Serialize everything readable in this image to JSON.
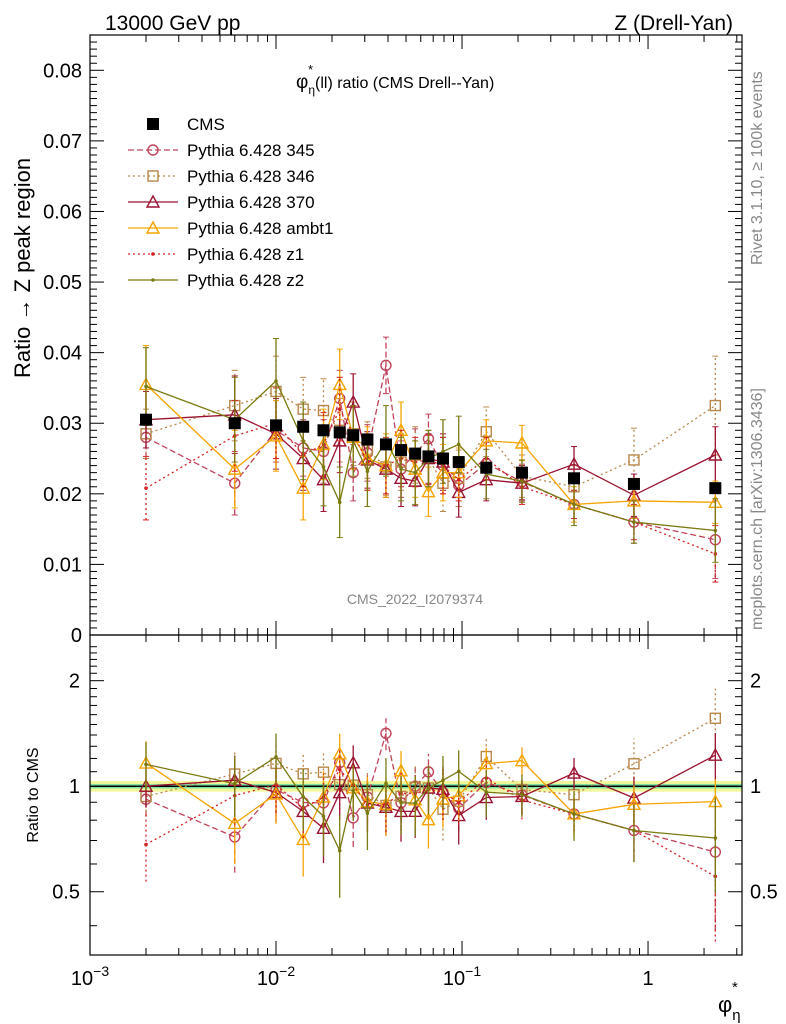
{
  "header": {
    "left": "13000 GeV pp",
    "right": "Z (Drell-Yan)"
  },
  "top_panel": {
    "title_phi": "φ",
    "title_star": "*",
    "title_sub": "η",
    "title_rest": "(ll) ratio (CMS Drell--Yan)",
    "ylabel": "Ratio → Z peak region",
    "yticks": [
      "0",
      "0.01",
      "0.02",
      "0.03",
      "0.04",
      "0.05",
      "0.06",
      "0.07",
      "0.08"
    ],
    "watermark": "CMS_2022_I2079374"
  },
  "bottom_panel": {
    "ylabel": "Ratio to CMS",
    "yticks_left": [
      "0.5",
      "1",
      "2"
    ],
    "yticks_right": [
      "0.5",
      "1",
      "2"
    ]
  },
  "xaxis": {
    "label_phi": "φ",
    "label_star": "*",
    "label_sub": "η",
    "ticks": [
      {
        "base": "10",
        "exp": "−3"
      },
      {
        "base": "10",
        "exp": "−2"
      },
      {
        "base": "10",
        "exp": "−1"
      },
      {
        "base": "1",
        "exp": ""
      }
    ]
  },
  "side_labels": {
    "rivet": "Rivet 3.1.10, ≥ 100k events",
    "mcplots": "mcplots.cern.ch [arXiv:1306.3436]"
  },
  "legend": [
    {
      "label": "CMS",
      "color": "#000000",
      "marker": "square-filled",
      "dash": "solid"
    },
    {
      "label": "Pythia 6.428 345",
      "color": "#c0435a",
      "marker": "circle",
      "dash": "dashed"
    },
    {
      "label": "Pythia 6.428 346",
      "color": "#b8864a",
      "marker": "square-open",
      "dash": "dotted"
    },
    {
      "label": "Pythia 6.428 370",
      "color": "#9b1230",
      "marker": "triangle",
      "dash": "solid"
    },
    {
      "label": "Pythia 6.428 ambt1",
      "color": "#f5a300",
      "marker": "triangle",
      "dash": "solid"
    },
    {
      "label": "Pythia 6.428 z1",
      "color": "#d62020",
      "marker": "dot",
      "dash": "dotted"
    },
    {
      "label": "Pythia 6.428 z2",
      "color": "#7a7a10",
      "marker": "dot",
      "dash": "solid"
    }
  ],
  "chart_data": {
    "type": "line",
    "xscale": "log",
    "xlim": [
      0.001,
      3.2
    ],
    "ylim": [
      0,
      0.085
    ],
    "ratio_ylim": [
      0.33,
      2.7
    ],
    "ratio_yscale": "log",
    "grid": false,
    "legend_position": "top-left",
    "x": [
      0.002,
      0.006,
      0.01,
      0.014,
      0.018,
      0.022,
      0.026,
      0.031,
      0.039,
      0.047,
      0.056,
      0.066,
      0.079,
      0.096,
      0.135,
      0.21,
      0.4,
      0.84,
      2.3
    ],
    "data": {
      "name": "CMS",
      "values": [
        0.0305,
        0.03,
        0.0297,
        0.0295,
        0.029,
        0.0287,
        0.0283,
        0.0277,
        0.027,
        0.0262,
        0.0257,
        0.0253,
        0.025,
        0.0245,
        0.0237,
        0.023,
        0.0222,
        0.0214,
        0.0208
      ]
    },
    "series": [
      {
        "name": "Pythia 6.428 345",
        "values": [
          0.028,
          0.0215,
          0.029,
          0.0265,
          0.026,
          0.0335,
          0.023,
          0.0258,
          0.0382,
          0.0235,
          0.0257,
          0.0278,
          0.024,
          0.0212,
          0.0243,
          0.0217,
          0.0185,
          0.016,
          0.0135
        ],
        "errors": [
          0.003,
          0.0045,
          0.0045,
          0.004,
          0.0045,
          0.004,
          0.004,
          0.004,
          0.004,
          0.004,
          0.0035,
          0.0035,
          0.004,
          0.003,
          0.003,
          0.0025,
          0.002,
          0.003,
          0.0055
        ]
      },
      {
        "name": "Pythia 6.428 346",
        "values": [
          0.0285,
          0.0325,
          0.0345,
          0.032,
          0.0318,
          0.029,
          0.0285,
          0.0262,
          0.0238,
          0.0245,
          0.0255,
          0.025,
          0.0215,
          0.0222,
          0.0288,
          0.0225,
          0.021,
          0.0248,
          0.0325
        ],
        "errors": [
          0.0035,
          0.005,
          0.005,
          0.0045,
          0.0045,
          0.0045,
          0.0045,
          0.004,
          0.004,
          0.004,
          0.004,
          0.004,
          0.004,
          0.004,
          0.0035,
          0.003,
          0.003,
          0.0045,
          0.007
        ]
      },
      {
        "name": "Pythia 6.428 370",
        "values": [
          0.0305,
          0.0312,
          0.0285,
          0.025,
          0.022,
          0.0275,
          0.033,
          0.0248,
          0.0235,
          0.0222,
          0.0218,
          0.025,
          0.0245,
          0.0202,
          0.022,
          0.0215,
          0.0242,
          0.0198,
          0.0255
        ],
        "errors": [
          0.004,
          0.0055,
          0.005,
          0.0045,
          0.0045,
          0.0045,
          0.004,
          0.004,
          0.004,
          0.004,
          0.0035,
          0.0035,
          0.004,
          0.0035,
          0.003,
          0.0025,
          0.0025,
          0.003,
          0.004
        ]
      },
      {
        "name": "Pythia 6.428 ambt1",
        "values": [
          0.0355,
          0.0235,
          0.0282,
          0.0208,
          0.027,
          0.0355,
          0.028,
          0.025,
          0.024,
          0.029,
          0.0235,
          0.0203,
          0.023,
          0.023,
          0.0275,
          0.0272,
          0.0185,
          0.019,
          0.0188
        ],
        "errors": [
          0.0055,
          0.0055,
          0.005,
          0.0045,
          0.005,
          0.005,
          0.0045,
          0.0045,
          0.0045,
          0.004,
          0.004,
          0.0035,
          0.004,
          0.0035,
          0.003,
          0.0025,
          0.0025,
          0.0025,
          0.003
        ]
      },
      {
        "name": "Pythia 6.428 z1",
        "values": [
          0.0208,
          0.0282,
          0.03,
          0.0255,
          0.027,
          0.032,
          0.0285,
          0.0245,
          0.024,
          0.025,
          0.0245,
          0.0248,
          0.024,
          0.022,
          0.025,
          0.021,
          0.0185,
          0.016,
          0.0115
        ],
        "errors": [
          0.0045,
          0.005,
          0.005,
          0.0045,
          0.0045,
          0.0045,
          0.004,
          0.004,
          0.004,
          0.004,
          0.0035,
          0.0035,
          0.004,
          0.003,
          0.003,
          0.0025,
          0.002,
          0.0025,
          0.004
        ]
      },
      {
        "name": "Pythia 6.428 z2",
        "values": [
          0.0352,
          0.0305,
          0.036,
          0.0275,
          0.0238,
          0.0188,
          0.0275,
          0.0232,
          0.0275,
          0.0235,
          0.023,
          0.025,
          0.026,
          0.027,
          0.0228,
          0.0218,
          0.0185,
          0.016,
          0.0148
        ],
        "errors": [
          0.0055,
          0.006,
          0.006,
          0.0055,
          0.0055,
          0.005,
          0.005,
          0.005,
          0.005,
          0.0045,
          0.0045,
          0.004,
          0.0045,
          0.004,
          0.0035,
          0.003,
          0.003,
          0.003,
          0.0045
        ]
      }
    ]
  }
}
